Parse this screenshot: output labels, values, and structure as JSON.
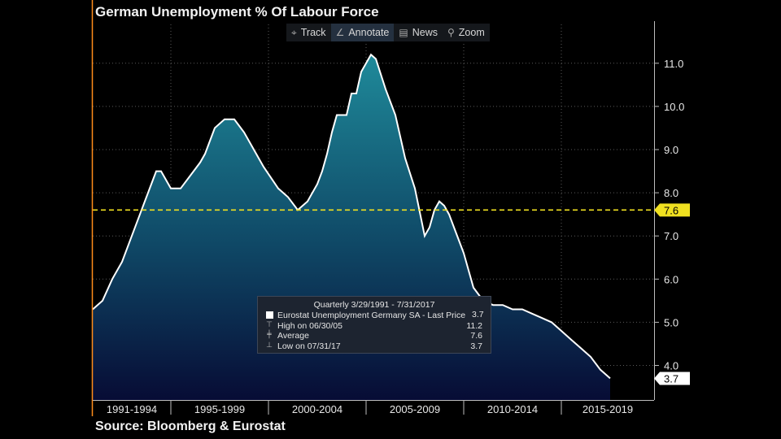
{
  "title": "German Unemployment % Of Labour Force",
  "source": "Source: Bloomberg & Eurostat",
  "toolbar": {
    "track": "Track",
    "annotate": "Annotate",
    "news": "News",
    "zoom": "Zoom"
  },
  "tooltip": {
    "header": "Quarterly 3/29/1991 - 7/31/2017",
    "series_label": "Eurostat Unemployment Germany SA - Last Price",
    "series_value": "3.7",
    "high_label": "High on 06/30/05",
    "high_value": "11.2",
    "avg_label": "Average",
    "avg_value": "7.6",
    "low_label": "Low on 07/31/17",
    "low_value": "3.7"
  },
  "colors": {
    "line": "#ffffff",
    "area_top": "#1f8a9a",
    "area_bottom": "#070c35",
    "average_line": "#f0e020",
    "axis_accent": "#ff8c1a"
  },
  "chart_data": {
    "type": "area",
    "title": "German Unemployment % Of Labour Force",
    "xlabel": "",
    "ylabel": "",
    "ylim": [
      3.2,
      11.9
    ],
    "yticks": [
      4.0,
      5.0,
      6.0,
      7.0,
      8.0,
      9.0,
      10.0,
      11.0
    ],
    "ytick_labels": [
      "4.0",
      "5.0",
      "6.0",
      "7.0",
      "8.0",
      "9.0",
      "10.0",
      "11.0"
    ],
    "xlim": [
      1991.0,
      2019.75
    ],
    "xtick_labels": [
      {
        "label": "1991-1994",
        "start": 1991,
        "end": 1995
      },
      {
        "label": "1995-1999",
        "start": 1995,
        "end": 2000
      },
      {
        "label": "2000-2004",
        "start": 2000,
        "end": 2005
      },
      {
        "label": "2005-2009",
        "start": 2005,
        "end": 2010
      },
      {
        "label": "2010-2014",
        "start": 2010,
        "end": 2015
      },
      {
        "label": "2015-2019",
        "start": 2015,
        "end": 2020
      }
    ],
    "grid": true,
    "average": 7.6,
    "last_value": 3.7,
    "series": [
      {
        "x": [
          1991.0,
          1991.5,
          1992.0,
          1992.5,
          1993.0,
          1993.5,
          1993.75,
          1994.0,
          1994.25,
          1994.5,
          1995.0,
          1995.5,
          1996.0,
          1996.5,
          1996.75,
          1997.25,
          1997.75,
          1998.25,
          1998.75,
          1999.25,
          1999.75,
          2000.5,
          2001.0,
          2001.5,
          2002.0,
          2002.5,
          2002.75,
          2003.0,
          2003.25,
          2003.5,
          2003.75,
          2004.0,
          2004.25,
          2004.5,
          2004.75,
          2005.0,
          2005.25,
          2005.5,
          2006.0,
          2006.5,
          2007.0,
          2007.5,
          2008.0,
          2008.25,
          2008.5,
          2008.75,
          2009.0,
          2009.25,
          2009.5,
          2009.75,
          2010.0,
          2010.5,
          2011.0,
          2011.5,
          2012.0,
          2012.5,
          2013.0,
          2013.5,
          2014.0,
          2014.5,
          2015.0,
          2015.5,
          2016.0,
          2016.5,
          2017.0,
          2017.5
        ],
        "values": [
          5.3,
          5.5,
          6.0,
          6.4,
          7.0,
          7.6,
          7.9,
          8.2,
          8.5,
          8.5,
          8.1,
          8.1,
          8.4,
          8.7,
          8.9,
          9.5,
          9.7,
          9.7,
          9.4,
          9.0,
          8.6,
          8.1,
          7.9,
          7.6,
          7.8,
          8.2,
          8.5,
          8.9,
          9.4,
          9.8,
          9.8,
          9.8,
          10.3,
          10.3,
          10.8,
          11.0,
          11.2,
          11.1,
          10.4,
          9.8,
          8.8,
          8.1,
          7.0,
          7.2,
          7.6,
          7.8,
          7.7,
          7.5,
          7.2,
          6.9,
          6.6,
          5.8,
          5.5,
          5.4,
          5.4,
          5.3,
          5.3,
          5.2,
          5.1,
          5.0,
          4.8,
          4.6,
          4.4,
          4.2,
          3.9,
          3.7
        ]
      }
    ]
  }
}
